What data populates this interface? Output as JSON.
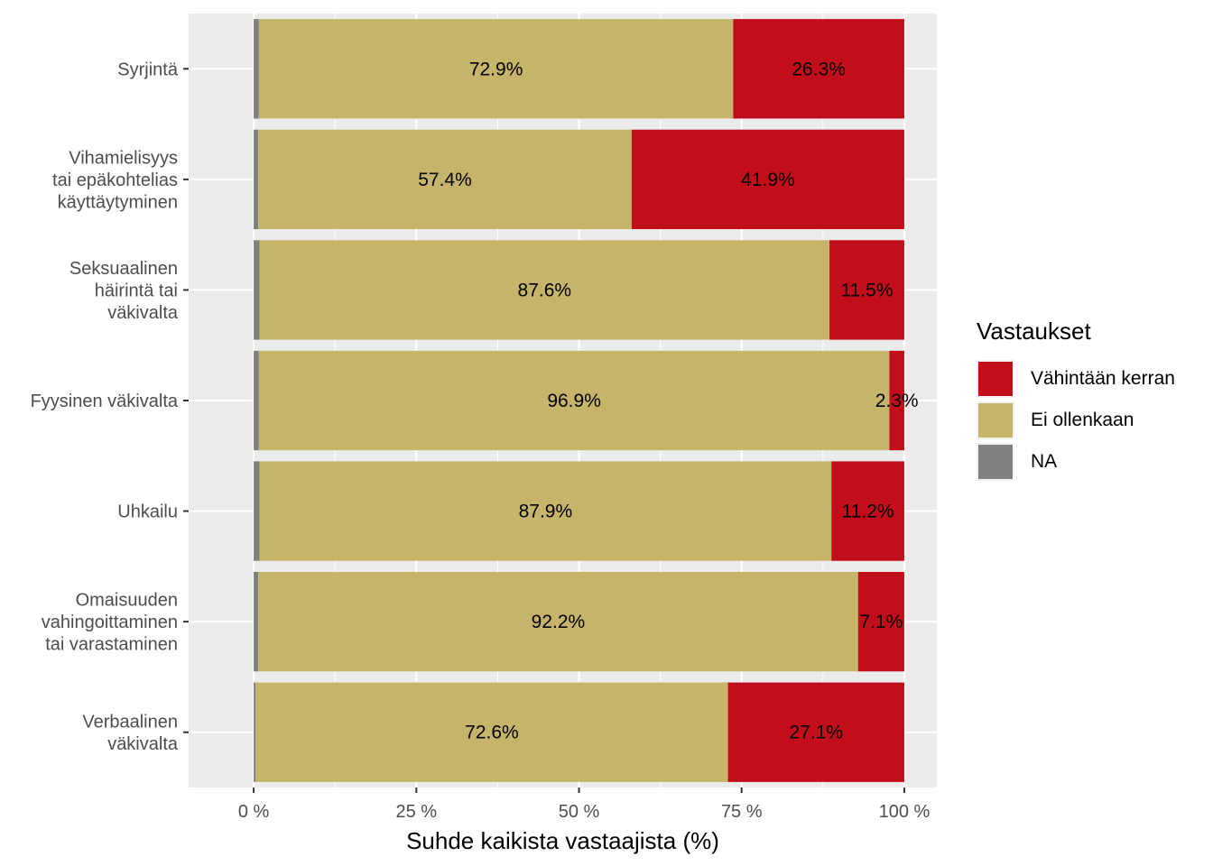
{
  "chart_data": {
    "type": "bar",
    "orientation": "horizontal",
    "stacked": true,
    "categories": [
      "Syrjintä",
      "Vihamielisyys\ntai epäkohtelias\nkäyttäytyminen",
      "Seksuaalinen\nhäirintä tai\nväkivalta",
      "Fyysinen väkivalta",
      "Uhkailu",
      "Omaisuuden\nvahingoittaminen\ntai varastaminen",
      "Verbaalinen\nväkivalta"
    ],
    "series": [
      {
        "name": "NA",
        "color": "#808080",
        "values": [
          0.8,
          0.7,
          0.9,
          0.8,
          0.9,
          0.7,
          0.3
        ]
      },
      {
        "name": "Ei ollenkaan",
        "color": "#c5b46a",
        "values": [
          72.9,
          57.4,
          87.6,
          96.9,
          87.9,
          92.2,
          72.6
        ]
      },
      {
        "name": "Vähintään kerran",
        "color": "#c20e1a",
        "values": [
          26.3,
          41.9,
          11.5,
          2.3,
          11.2,
          7.1,
          27.1
        ]
      }
    ],
    "data_labels": {
      "Ei ollenkaan": [
        "72.9%",
        "57.4%",
        "87.6%",
        "96.9%",
        "87.9%",
        "92.2%",
        "72.6%"
      ],
      "Vähintään kerran": [
        "26.3%",
        "41.9%",
        "11.5%",
        "2.3%",
        "11.2%",
        "7.1%",
        "27.1%"
      ]
    },
    "xlim": [
      -10,
      105
    ],
    "xticks": [
      0,
      25,
      50,
      75,
      100
    ],
    "xtick_labels": [
      "0 %",
      "25 %",
      "50 %",
      "75 %",
      "100 %"
    ],
    "xlabel": "Suhde kaikista vastaajista (%)",
    "ylabel": "",
    "panel_background": "#ebebeb",
    "grid": true
  },
  "legend": {
    "title": "Vastaukset",
    "items": [
      {
        "label": "Vähintään kerran",
        "color": "#c20e1a"
      },
      {
        "label": "Ei ollenkaan",
        "color": "#c5b46a"
      },
      {
        "label": "NA",
        "color": "#808080"
      }
    ]
  }
}
